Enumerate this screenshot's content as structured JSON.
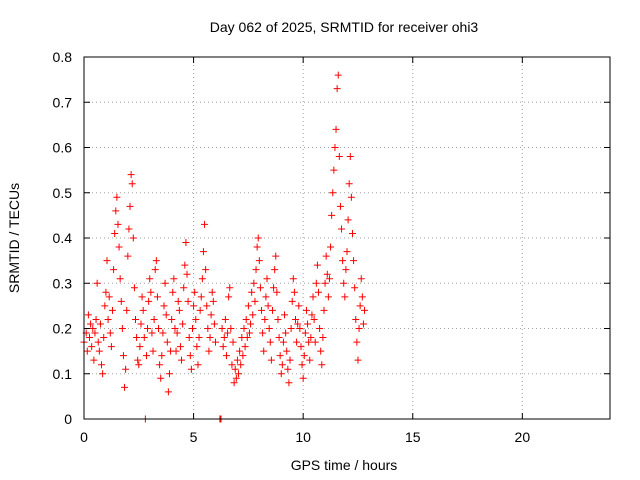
{
  "chart_data": {
    "type": "scatter",
    "title": "Day 062 of 2025, SRMTID for receiver ohi3",
    "xlabel": "GPS time / hours",
    "ylabel": "SRMTID / TECUs",
    "xlim": [
      0,
      24
    ],
    "ylim": [
      0,
      0.8
    ],
    "xticks": [
      0,
      5,
      10,
      15,
      20
    ],
    "xtick_labels": [
      "0",
      "5",
      "10",
      "15",
      "20"
    ],
    "yticks": [
      0,
      0.1,
      0.2,
      0.3,
      0.4,
      0.5,
      0.6,
      0.7,
      0.8
    ],
    "ytick_labels": [
      "0",
      "0.1",
      "0.2",
      "0.3",
      "0.4",
      "0.5",
      "0.6",
      "0.7",
      "0.8"
    ],
    "grid": true,
    "marker": "+",
    "colors": {
      "series": "#ff0000",
      "grid": "#a0a0a0",
      "axis": "#000000"
    },
    "series": [
      {
        "name": "SRMTID",
        "points": [
          [
            0.0,
            0.17
          ],
          [
            0.1,
            0.19
          ],
          [
            0.15,
            0.15
          ],
          [
            0.2,
            0.23
          ],
          [
            0.25,
            0.18
          ],
          [
            0.3,
            0.21
          ],
          [
            0.35,
            0.16
          ],
          [
            0.4,
            0.2
          ],
          [
            0.45,
            0.13
          ],
          [
            0.5,
            0.19
          ],
          [
            0.55,
            0.22
          ],
          [
            0.6,
            0.3
          ],
          [
            0.65,
            0.17
          ],
          [
            0.7,
            0.15
          ],
          [
            0.75,
            0.21
          ],
          [
            0.8,
            0.12
          ],
          [
            0.85,
            0.1
          ],
          [
            0.9,
            0.18
          ],
          [
            0.95,
            0.25
          ],
          [
            1.0,
            0.28
          ],
          [
            1.05,
            0.35
          ],
          [
            1.1,
            0.22
          ],
          [
            1.15,
            0.27
          ],
          [
            1.2,
            0.19
          ],
          [
            1.25,
            0.16
          ],
          [
            1.3,
            0.24
          ],
          [
            1.35,
            0.33
          ],
          [
            1.4,
            0.41
          ],
          [
            1.45,
            0.46
          ],
          [
            1.5,
            0.49
          ],
          [
            1.55,
            0.43
          ],
          [
            1.6,
            0.38
          ],
          [
            1.65,
            0.31
          ],
          [
            1.7,
            0.26
          ],
          [
            1.75,
            0.2
          ],
          [
            1.8,
            0.14
          ],
          [
            1.85,
            0.07
          ],
          [
            1.9,
            0.11
          ],
          [
            1.95,
            0.24
          ],
          [
            2.0,
            0.36
          ],
          [
            2.05,
            0.42
          ],
          [
            2.1,
            0.47
          ],
          [
            2.15,
            0.54
          ],
          [
            2.2,
            0.52
          ],
          [
            2.25,
            0.4
          ],
          [
            2.3,
            0.29
          ],
          [
            2.35,
            0.22
          ],
          [
            2.4,
            0.18
          ],
          [
            2.45,
            0.13
          ],
          [
            2.5,
            0.12
          ],
          [
            2.55,
            0.16
          ],
          [
            2.6,
            0.21
          ],
          [
            2.65,
            0.27
          ],
          [
            2.7,
            0.24
          ],
          [
            2.75,
            0.18
          ],
          [
            2.8,
            0.0
          ],
          [
            2.85,
            0.14
          ],
          [
            2.9,
            0.2
          ],
          [
            2.95,
            0.26
          ],
          [
            3.0,
            0.31
          ],
          [
            3.05,
            0.28
          ],
          [
            3.1,
            0.19
          ],
          [
            3.15,
            0.15
          ],
          [
            3.2,
            0.22
          ],
          [
            3.25,
            0.33
          ],
          [
            3.3,
            0.35
          ],
          [
            3.35,
            0.27
          ],
          [
            3.4,
            0.2
          ],
          [
            3.45,
            0.12
          ],
          [
            3.5,
            0.09
          ],
          [
            3.55,
            0.14
          ],
          [
            3.6,
            0.19
          ],
          [
            3.65,
            0.25
          ],
          [
            3.7,
            0.3
          ],
          [
            3.75,
            0.23
          ],
          [
            3.8,
            0.17
          ],
          [
            3.85,
            0.06
          ],
          [
            3.9,
            0.1
          ],
          [
            3.95,
            0.15
          ],
          [
            4.0,
            0.22
          ],
          [
            4.05,
            0.28
          ],
          [
            4.1,
            0.31
          ],
          [
            4.15,
            0.2
          ],
          [
            4.2,
            0.15
          ],
          [
            4.25,
            0.19
          ],
          [
            4.3,
            0.26
          ],
          [
            4.35,
            0.24
          ],
          [
            4.4,
            0.16
          ],
          [
            4.45,
            0.13
          ],
          [
            4.5,
            0.21
          ],
          [
            4.55,
            0.29
          ],
          [
            4.6,
            0.34
          ],
          [
            4.65,
            0.39
          ],
          [
            4.7,
            0.32
          ],
          [
            4.75,
            0.26
          ],
          [
            4.8,
            0.18
          ],
          [
            4.85,
            0.14
          ],
          [
            4.9,
            0.11
          ],
          [
            4.95,
            0.2
          ],
          [
            5.0,
            0.25
          ],
          [
            5.05,
            0.28
          ],
          [
            5.1,
            0.22
          ],
          [
            5.15,
            0.16
          ],
          [
            5.2,
            0.12
          ],
          [
            5.25,
            0.18
          ],
          [
            5.3,
            0.24
          ],
          [
            5.35,
            0.27
          ],
          [
            5.4,
            0.31
          ],
          [
            5.45,
            0.37
          ],
          [
            5.5,
            0.43
          ],
          [
            5.55,
            0.33
          ],
          [
            5.6,
            0.25
          ],
          [
            5.65,
            0.2
          ],
          [
            5.7,
            0.15
          ],
          [
            5.75,
            0.18
          ],
          [
            5.8,
            0.23
          ],
          [
            5.85,
            0.28
          ],
          [
            5.9,
            0.26
          ],
          [
            5.95,
            0.21
          ],
          [
            6.0,
            0.17
          ],
          [
            6.2,
            0.0
          ],
          [
            6.22,
            0.0
          ],
          [
            6.25,
            0.0
          ],
          [
            6.3,
            0.2
          ],
          [
            6.35,
            0.16
          ],
          [
            6.4,
            0.18
          ],
          [
            6.45,
            0.22
          ],
          [
            6.5,
            0.14
          ],
          [
            6.55,
            0.19
          ],
          [
            6.6,
            0.27
          ],
          [
            6.65,
            0.29
          ],
          [
            6.7,
            0.2
          ],
          [
            6.75,
            0.12
          ],
          [
            6.8,
            0.17
          ],
          [
            6.85,
            0.08
          ],
          [
            6.9,
            0.11
          ],
          [
            6.95,
            0.09
          ],
          [
            7.0,
            0.13
          ],
          [
            7.05,
            0.1
          ],
          [
            7.1,
            0.15
          ],
          [
            7.15,
            0.12
          ],
          [
            7.2,
            0.18
          ],
          [
            7.25,
            0.14
          ],
          [
            7.3,
            0.2
          ],
          [
            7.35,
            0.16
          ],
          [
            7.4,
            0.22
          ],
          [
            7.45,
            0.18
          ],
          [
            7.5,
            0.25
          ],
          [
            7.55,
            0.19
          ],
          [
            7.6,
            0.21
          ],
          [
            7.65,
            0.28
          ],
          [
            7.7,
            0.23
          ],
          [
            7.75,
            0.3
          ],
          [
            7.8,
            0.26
          ],
          [
            7.85,
            0.33
          ],
          [
            7.9,
            0.38
          ],
          [
            7.95,
            0.4
          ],
          [
            8.0,
            0.35
          ],
          [
            8.05,
            0.29
          ],
          [
            8.1,
            0.24
          ],
          [
            8.15,
            0.19
          ],
          [
            8.2,
            0.15
          ],
          [
            8.25,
            0.22
          ],
          [
            8.3,
            0.27
          ],
          [
            8.35,
            0.31
          ],
          [
            8.4,
            0.25
          ],
          [
            8.45,
            0.2
          ],
          [
            8.5,
            0.17
          ],
          [
            8.55,
            0.13
          ],
          [
            8.6,
            0.24
          ],
          [
            8.65,
            0.29
          ],
          [
            8.7,
            0.33
          ],
          [
            8.75,
            0.36
          ],
          [
            8.8,
            0.28
          ],
          [
            8.85,
            0.22
          ],
          [
            8.9,
            0.18
          ],
          [
            8.95,
            0.14
          ],
          [
            9.0,
            0.1
          ],
          [
            9.05,
            0.12
          ],
          [
            9.1,
            0.17
          ],
          [
            9.15,
            0.23
          ],
          [
            9.2,
            0.19
          ],
          [
            9.25,
            0.15
          ],
          [
            9.3,
            0.11
          ],
          [
            9.35,
            0.08
          ],
          [
            9.4,
            0.13
          ],
          [
            9.45,
            0.2
          ],
          [
            9.5,
            0.26
          ],
          [
            9.55,
            0.31
          ],
          [
            9.6,
            0.28
          ],
          [
            9.65,
            0.22
          ],
          [
            9.7,
            0.17
          ],
          [
            9.75,
            0.21
          ],
          [
            9.8,
            0.25
          ],
          [
            9.85,
            0.2
          ],
          [
            9.9,
            0.16
          ],
          [
            9.95,
            0.12
          ],
          [
            10.0,
            0.09
          ],
          [
            10.05,
            0.14
          ],
          [
            10.1,
            0.19
          ],
          [
            10.15,
            0.24
          ],
          [
            10.2,
            0.21
          ],
          [
            10.25,
            0.17
          ],
          [
            10.3,
            0.13
          ],
          [
            10.35,
            0.18
          ],
          [
            10.4,
            0.23
          ],
          [
            10.45,
            0.27
          ],
          [
            10.5,
            0.22
          ],
          [
            10.55,
            0.17
          ],
          [
            10.6,
            0.3
          ],
          [
            10.65,
            0.34
          ],
          [
            10.7,
            0.28
          ],
          [
            10.75,
            0.2
          ],
          [
            10.8,
            0.15
          ],
          [
            10.85,
            0.12
          ],
          [
            10.9,
            0.18
          ],
          [
            10.95,
            0.24
          ],
          [
            11.0,
            0.3
          ],
          [
            11.05,
            0.36
          ],
          [
            11.1,
            0.32
          ],
          [
            11.15,
            0.27
          ],
          [
            11.2,
            0.31
          ],
          [
            11.25,
            0.38
          ],
          [
            11.3,
            0.45
          ],
          [
            11.35,
            0.5
          ],
          [
            11.4,
            0.55
          ],
          [
            11.45,
            0.6
          ],
          [
            11.5,
            0.64
          ],
          [
            11.55,
            0.73
          ],
          [
            11.6,
            0.76
          ],
          [
            11.65,
            0.58
          ],
          [
            11.7,
            0.47
          ],
          [
            11.75,
            0.42
          ],
          [
            11.8,
            0.35
          ],
          [
            11.85,
            0.3
          ],
          [
            11.9,
            0.27
          ],
          [
            11.95,
            0.33
          ],
          [
            12.0,
            0.37
          ],
          [
            12.05,
            0.44
          ],
          [
            12.1,
            0.52
          ],
          [
            12.15,
            0.58
          ],
          [
            12.2,
            0.49
          ],
          [
            12.25,
            0.41
          ],
          [
            12.3,
            0.35
          ],
          [
            12.35,
            0.29
          ],
          [
            12.4,
            0.22
          ],
          [
            12.45,
            0.17
          ],
          [
            12.5,
            0.13
          ],
          [
            12.55,
            0.2
          ],
          [
            12.6,
            0.25
          ],
          [
            12.65,
            0.31
          ],
          [
            12.7,
            0.27
          ],
          [
            12.75,
            0.21
          ],
          [
            12.8,
            0.24
          ]
        ]
      }
    ]
  }
}
